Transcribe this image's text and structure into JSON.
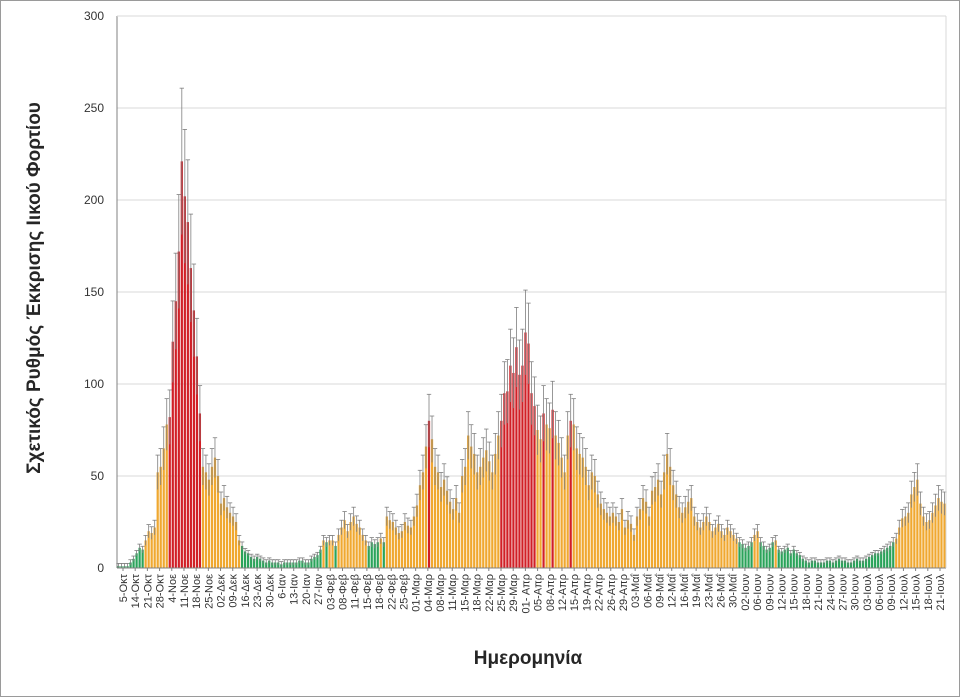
{
  "chart_data": {
    "type": "bar",
    "title": "",
    "xlabel": "Ημερομηνία",
    "ylabel": "Σχετικός Ρυθμός Έκκρισης Ιικού Φορτίου",
    "ylim": [
      0,
      300
    ],
    "yticks": [
      0,
      50,
      100,
      150,
      200,
      250,
      300
    ],
    "grid": "horizontal",
    "error_bars": true,
    "colors": {
      "high": "#d11f26",
      "medium": "#f0a830",
      "low": "#2aa35a",
      "error_bar": "#7f7f7f",
      "grid": "#d9d9d9",
      "axis": "#808080"
    },
    "tick_labels": [
      "5-Οκτ",
      "14-Οκτ",
      "21-Οκτ",
      "28-Οκτ",
      "4-Νοε",
      "11-Νοε",
      "18-Νοε",
      "25-Νοε",
      "02-Δεκ",
      "09-Δεκ",
      "16-Δεκ",
      "23-Δεκ",
      "30-Δεκ",
      "6-Ιαν",
      "13-Ιαν",
      "20-Ιαν",
      "27-Ιαν",
      "03-Φεβ",
      "08-Φεβ",
      "11-Φεβ",
      "15-Φεβ",
      "18-Φεβ",
      "22-Φεβ",
      "25-Φεβ",
      "01-Μαρ",
      "04-Μαρ",
      "08-Μαρ",
      "11-Μαρ",
      "15-Μαρ",
      "18-Μαρ",
      "22-Μαρ",
      "25-Μαρ",
      "29-Μαρ",
      "01- Απρ",
      "05-Απρ",
      "08-Απρ",
      "12-Απρ",
      "15-Απρ",
      "19-Απρ",
      "22-Απρ",
      "26-Απρ",
      "29-Απρ",
      "03-Μαΐ",
      "06-Μαΐ",
      "09-Μαΐ",
      "12-Μαΐ",
      "16-Μαΐ",
      "19-Μαΐ",
      "23-Μαΐ",
      "26-Μαΐ",
      "30-Μαΐ",
      "02-Ιουν",
      "06-Ιουν",
      "09-Ιουν",
      "12-Ιουν",
      "15-Ιουν",
      "18-Ιουν",
      "21-Ιουν",
      "24-Ιουν",
      "27-Ιουν",
      "30-Ιουν",
      "03-Ιουλ",
      "06-Ιουλ",
      "09-Ιουλ",
      "12-Ιουλ",
      "15-Ιουλ",
      "18-Ιουλ",
      "21-Ιουλ"
    ],
    "values": [
      1,
      1,
      1,
      1,
      3,
      5,
      8,
      11,
      10,
      15,
      20,
      19,
      22,
      52,
      55,
      65,
      78,
      82,
      123,
      145,
      172,
      221,
      202,
      188,
      163,
      140,
      115,
      84,
      55,
      52,
      48,
      55,
      60,
      50,
      35,
      38,
      33,
      30,
      28,
      25,
      15,
      12,
      9,
      8,
      6,
      5,
      6,
      5,
      4,
      3,
      4,
      3,
      3,
      3,
      2,
      3,
      3,
      3,
      3,
      3,
      4,
      4,
      3,
      3,
      5,
      6,
      7,
      10,
      15,
      14,
      15,
      15,
      12,
      18,
      22,
      26,
      20,
      25,
      28,
      24,
      22,
      18,
      15,
      12,
      14,
      13,
      14,
      16,
      14,
      28,
      26,
      25,
      22,
      19,
      20,
      25,
      23,
      22,
      28,
      34,
      45,
      52,
      66,
      80,
      70,
      55,
      52,
      44,
      48,
      42,
      36,
      32,
      38,
      30,
      50,
      55,
      72,
      66,
      62,
      52,
      55,
      60,
      64,
      58,
      52,
      62,
      72,
      80,
      95,
      96,
      110,
      106,
      120,
      105,
      110,
      128,
      122,
      95,
      88,
      75,
      70,
      84,
      78,
      76,
      86,
      72,
      68,
      60,
      52,
      72,
      80,
      78,
      65,
      62,
      60,
      55,
      45,
      52,
      50,
      40,
      35,
      32,
      30,
      28,
      30,
      28,
      25,
      32,
      22,
      26,
      24,
      18,
      28,
      32,
      38,
      36,
      28,
      42,
      44,
      48,
      40,
      52,
      62,
      55,
      45,
      40,
      33,
      30,
      33,
      36,
      38,
      28,
      25,
      22,
      25,
      28,
      25,
      20,
      22,
      24,
      20,
      18,
      22,
      20,
      18,
      16,
      14,
      13,
      11,
      12,
      14,
      18,
      20,
      14,
      12,
      10,
      11,
      14,
      15,
      10,
      9,
      10,
      11,
      8,
      10,
      8,
      7,
      5,
      4,
      3,
      4,
      4,
      3,
      3,
      3,
      4,
      4,
      3,
      4,
      5,
      4,
      4,
      3,
      3,
      4,
      5,
      4,
      4,
      5,
      6,
      7,
      8,
      8,
      9,
      10,
      11,
      12,
      14,
      16,
      22,
      27,
      28,
      30,
      40,
      44,
      48,
      35,
      28,
      25,
      26,
      30,
      34,
      38,
      36,
      35
    ]
  }
}
